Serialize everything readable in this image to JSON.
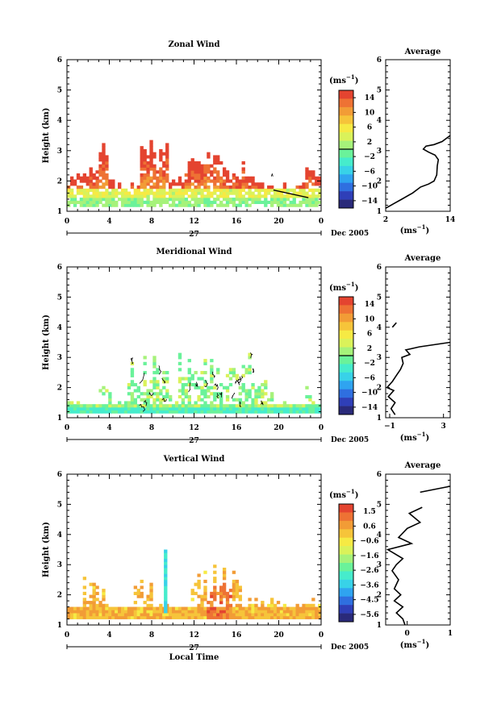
{
  "chart_data": [
    {
      "type": "heatmap",
      "title": "Zonal Wind",
      "ylabel": "Height (km)",
      "xlim": [
        0,
        24
      ],
      "ylim": [
        1,
        6
      ],
      "x_ticks": [
        "0",
        "4",
        "8",
        "12",
        "16",
        "20",
        "0"
      ],
      "y_ticks": [
        "1",
        "2",
        "3",
        "4",
        "5",
        "6"
      ],
      "day_label": "27",
      "date_label": "Dec 2005",
      "colorbar": {
        "unit_label": "(ms",
        "unit_exp": "−1",
        "unit_close": ")",
        "range": [
          -15,
          15
        ],
        "zero_line": 3,
        "tick_labels": [
          "14",
          "10",
          "6",
          "2",
          "−2",
          "−6",
          "−10",
          "−14"
        ]
      },
      "average_profile": {
        "title": "Average",
        "xlim": [
          2,
          14
        ],
        "x_ticks": [
          "2",
          "14"
        ],
        "ylim": [
          1,
          6
        ],
        "y_ticks": [
          "1",
          "2",
          "3",
          "4",
          "5",
          "6"
        ],
        "unit_label": "(ms",
        "unit_exp": "−1",
        "unit_close": ")",
        "points": [
          [
            2.0,
            1.1
          ],
          [
            3.5,
            1.25
          ],
          [
            5.0,
            1.4
          ],
          [
            7.0,
            1.6
          ],
          [
            8.5,
            1.8
          ],
          [
            10.0,
            1.9
          ],
          [
            11.0,
            2.0
          ],
          [
            11.5,
            2.2
          ],
          [
            11.6,
            2.5
          ],
          [
            11.8,
            2.7
          ],
          [
            11.2,
            2.85
          ],
          [
            10.0,
            2.95
          ],
          [
            9.0,
            3.05
          ],
          [
            9.5,
            3.15
          ],
          [
            11.0,
            3.2
          ],
          [
            12.5,
            3.3
          ],
          [
            14.0,
            3.5
          ]
        ]
      }
    },
    {
      "type": "heatmap",
      "title": "Meridional Wind",
      "ylabel": "Height (km)",
      "xlim": [
        0,
        24
      ],
      "ylim": [
        1,
        6
      ],
      "x_ticks": [
        "0",
        "4",
        "8",
        "12",
        "16",
        "20",
        "0"
      ],
      "y_ticks": [
        "1",
        "2",
        "3",
        "4",
        "5",
        "6"
      ],
      "day_label": "27",
      "date_label": "Dec 2005",
      "colorbar": {
        "unit_label": "(ms",
        "unit_exp": "−1",
        "unit_close": ")",
        "range": [
          -15,
          15
        ],
        "zero_line": 3,
        "tick_labels": [
          "14",
          "10",
          "6",
          "2",
          "−2",
          "−6",
          "−10",
          "−14"
        ]
      },
      "average_profile": {
        "title": "Average",
        "xlim": [
          -1.3,
          3.5
        ],
        "x_ticks": [
          "−1",
          "3"
        ],
        "ylim": [
          1,
          6
        ],
        "y_ticks": [
          "1",
          "2",
          "3",
          "4",
          "5",
          "6"
        ],
        "unit_label": "(ms",
        "unit_exp": "−1",
        "unit_close": ")",
        "points": [
          [
            -0.6,
            1.1
          ],
          [
            -0.9,
            1.3
          ],
          [
            -0.6,
            1.5
          ],
          [
            -1.1,
            1.7
          ],
          [
            -0.7,
            1.9
          ],
          [
            -1.2,
            2.0
          ],
          [
            -0.8,
            2.2
          ],
          [
            -0.5,
            2.4
          ],
          [
            -0.2,
            2.6
          ],
          [
            0.0,
            2.8
          ],
          [
            -0.1,
            3.0
          ],
          [
            0.5,
            3.1
          ],
          [
            0.2,
            3.25
          ],
          [
            1.2,
            3.35
          ],
          [
            3.5,
            3.5
          ]
        ],
        "points2": [
          [
            -0.8,
            4.0
          ],
          [
            -0.5,
            4.15
          ]
        ]
      }
    },
    {
      "type": "heatmap",
      "title": "Vertical Wind",
      "ylabel": "Height (km)",
      "xlabel": "Local Time",
      "xlim": [
        0,
        24
      ],
      "ylim": [
        1,
        6
      ],
      "x_ticks": [
        "0",
        "4",
        "8",
        "12",
        "16",
        "20",
        "0"
      ],
      "y_ticks": [
        "1",
        "2",
        "3",
        "4",
        "5",
        "6"
      ],
      "day_label": "27",
      "date_label": "Dec 2005",
      "colorbar": {
        "unit_label": "(ms",
        "unit_exp": "−1",
        "unit_close": ")",
        "range": [
          -6,
          2
        ],
        "zero_line": null,
        "tick_labels": [
          "1.5",
          "0.6",
          "−0.6",
          "−1.6",
          "−2.6",
          "−3.6",
          "−4.5",
          "−5.6"
        ]
      },
      "average_profile": {
        "title": "Average",
        "xlim": [
          -0.5,
          1
        ],
        "x_ticks": [
          "0",
          "1"
        ],
        "ylim": [
          1,
          6
        ],
        "y_ticks": [
          "1",
          "2",
          "3",
          "4",
          "5",
          "6"
        ],
        "unit_label": "(ms",
        "unit_exp": "−1",
        "unit_close": ")",
        "points": [
          [
            -0.05,
            1.0
          ],
          [
            -0.1,
            1.2
          ],
          [
            -0.25,
            1.4
          ],
          [
            -0.1,
            1.6
          ],
          [
            -0.3,
            1.8
          ],
          [
            -0.15,
            2.0
          ],
          [
            -0.3,
            2.2
          ],
          [
            -0.2,
            2.5
          ],
          [
            -0.35,
            2.8
          ],
          [
            -0.25,
            3.0
          ],
          [
            -0.1,
            3.2
          ],
          [
            -0.45,
            3.5
          ],
          [
            0.1,
            3.7
          ],
          [
            -0.2,
            3.9
          ],
          [
            0.0,
            4.2
          ],
          [
            0.3,
            4.4
          ],
          [
            0.05,
            4.7
          ],
          [
            0.35,
            4.9
          ]
        ],
        "points2": [
          [
            0.3,
            5.4
          ],
          [
            1.0,
            5.6
          ]
        ]
      }
    }
  ]
}
